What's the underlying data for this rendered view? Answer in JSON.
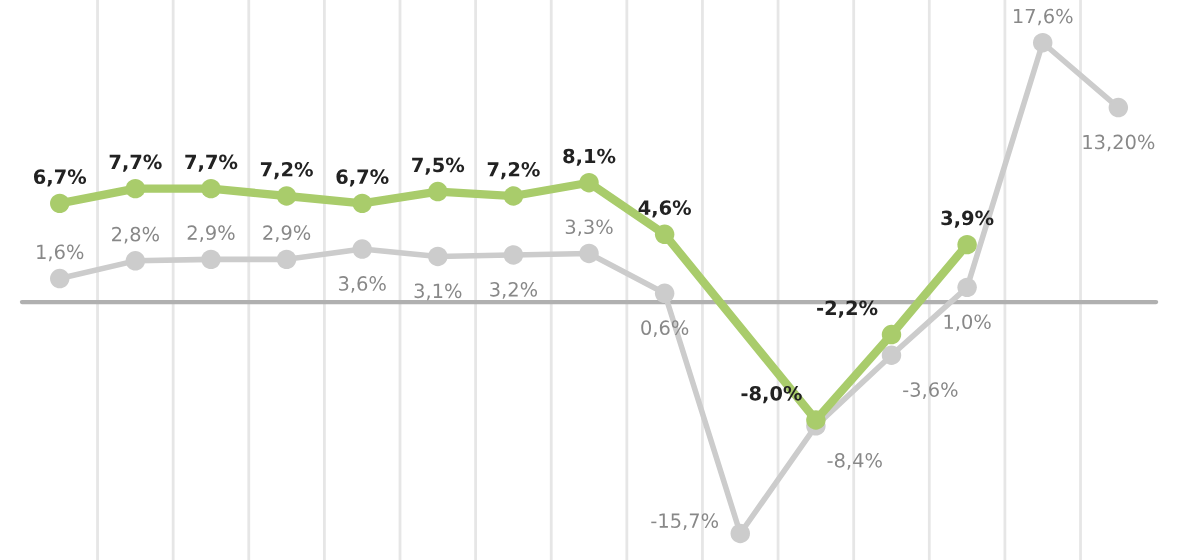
{
  "chart_data": {
    "type": "line",
    "categories": [
      null,
      null,
      null,
      null,
      null,
      null,
      null,
      null,
      null,
      null,
      null,
      null,
      null,
      null,
      null
    ],
    "series": [
      {
        "color": "#cccccc",
        "values": [
          1.6,
          2.8,
          2.9,
          2.9,
          3.6,
          3.1,
          3.2,
          3.3,
          0.6,
          -15.7,
          -8.4,
          -3.6,
          1.0,
          17.6,
          13.2
        ],
        "value_labels": [
          "1,6%",
          "2,8%",
          "2,9%",
          "2,9%",
          "3,6%",
          "3,1%",
          "3,2%",
          "3,3%",
          "0,6%",
          "-15,7%",
          "-8,4%",
          "-3,6%",
          "1,0%",
          "17,6%",
          "13,20%"
        ]
      },
      {
        "color": "#a9cc6b",
        "values": [
          6.7,
          7.7,
          7.7,
          7.2,
          6.7,
          7.5,
          7.2,
          8.1,
          4.6,
          null,
          -8.0,
          -2.2,
          3.9,
          null,
          null
        ],
        "value_labels": [
          "6,7%",
          "7,7%",
          "7,7%",
          "7,2%",
          "6,7%",
          "7,5%",
          "7,2%",
          "8,1%",
          "4,6%",
          null,
          "-8,0%",
          "-2,2%",
          "3,9%",
          null,
          null
        ]
      }
    ],
    "ylim": [
      -17.5,
      20.5
    ],
    "grid": "x",
    "marker": "circle",
    "line_style": "solid"
  }
}
